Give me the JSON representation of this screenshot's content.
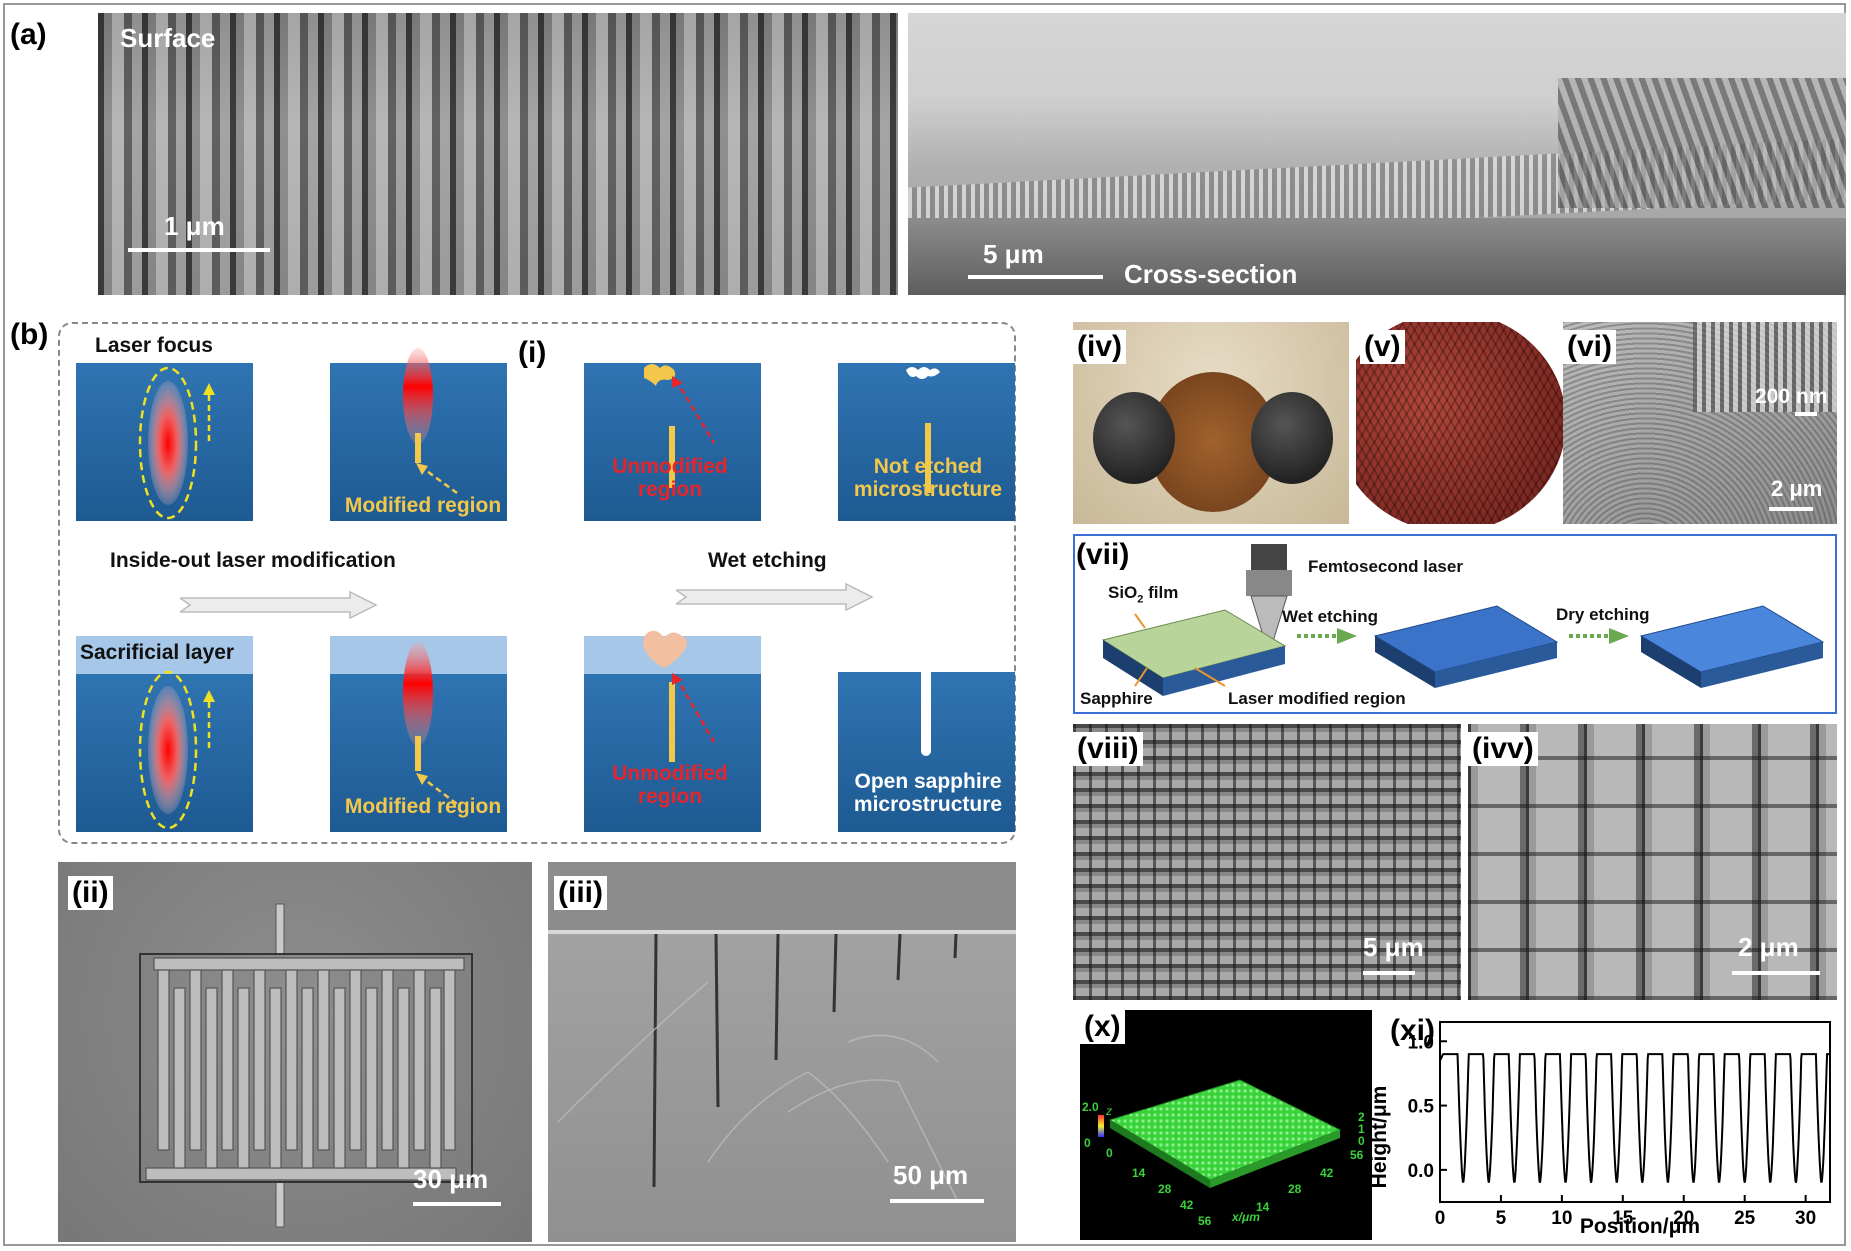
{
  "panel_a": {
    "label": "(a)",
    "surface_text": "Surface",
    "surface_scale": "1 μm",
    "cross_scale": "5 μm",
    "cross_text": "Cross-section"
  },
  "panel_b": {
    "label": "(b)",
    "sub_i": "(i)",
    "laser_focus": "Laser focus",
    "modified_region_1": "Modified region",
    "unmodified_region_1": "Unmodified region",
    "not_etched": "Not etched microstructure",
    "inside_out": "Inside-out laser modification",
    "wet_etching": "Wet etching",
    "sacrificial_layer": "Sacrificial layer",
    "modified_region_2": "Modified region",
    "unmodified_region_2": "Unmodified region",
    "open_sapphire": "Open sapphire microstructure"
  },
  "panel_ii": {
    "label": "(ii)",
    "scale": "30 μm"
  },
  "panel_iii": {
    "label": "(iii)",
    "scale": "50 μm"
  },
  "panel_iv": {
    "label": "(iv)"
  },
  "panel_v": {
    "label": "(v)"
  },
  "panel_vi": {
    "label": "(vi)",
    "scale_inset": "200 nm",
    "scale_main": "2 μm"
  },
  "panel_vii": {
    "label": "(vii)",
    "femto": "Femtosecond laser",
    "sio2_a": "SiO",
    "sio2_sub": "2",
    "sio2_b": " film",
    "wet": "Wet etching",
    "dry": "Dry etching",
    "sapphire": "Sapphire",
    "laser_mod": "Laser modified region"
  },
  "panel_viii": {
    "label": "(viii)",
    "scale": "5 μm"
  },
  "panel_ivv": {
    "label": "(ivv)",
    "scale": "2 μm"
  },
  "panel_x": {
    "label": "(x)",
    "z_max": "2.0",
    "z_axis": "z",
    "z_min": "0",
    "origin": "0",
    "x_ticks": [
      "14",
      "28",
      "42",
      "56"
    ],
    "x_axis": "x/μm",
    "y_ticks": [
      "14",
      "28",
      "42",
      "56"
    ],
    "right_ticks": [
      "2",
      "1",
      "0"
    ]
  },
  "panel_xi": {
    "label": "(xi)"
  },
  "chart_data": {
    "type": "line",
    "xlabel": "Position/μm",
    "ylabel": "Height/μm",
    "xlim": [
      0,
      32
    ],
    "ylim": [
      -0.25,
      1.15
    ],
    "x_ticks": [
      "0",
      "5",
      "10",
      "15",
      "20",
      "25",
      "30"
    ],
    "y_ticks": [
      "0.0",
      "0.5",
      "1.0"
    ],
    "series": [
      {
        "period": 2.1,
        "top": 0.9,
        "bottom": -0.1,
        "first_min": 1.9
      }
    ]
  }
}
